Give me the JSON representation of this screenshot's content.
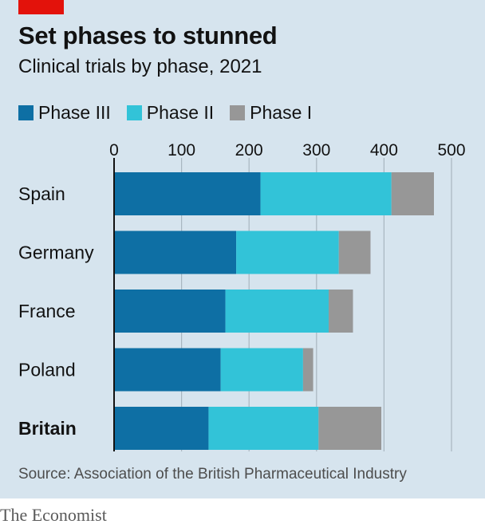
{
  "title": "Set phases to stunned",
  "subtitle": "Clinical trials by phase, 2021",
  "source": "Source: Association of the British Pharmaceutical Industry",
  "brand": "The Economist",
  "colors": {
    "phase3": "#0e6fa4",
    "phase2": "#32c3d8",
    "phase1": "#979797",
    "grid": "#a9b6c0",
    "axis": "#121212"
  },
  "chart_data": {
    "type": "bar",
    "orientation": "horizontal",
    "stacked": true,
    "categories": [
      "Spain",
      "Germany",
      "France",
      "Poland",
      "Britain"
    ],
    "highlight": "Britain",
    "series": [
      {
        "name": "Phase III",
        "values": [
          217,
          181,
          165,
          158,
          140
        ]
      },
      {
        "name": "Phase II",
        "values": [
          194,
          152,
          153,
          122,
          163
        ]
      },
      {
        "name": "Phase I",
        "values": [
          63,
          47,
          36,
          15,
          93
        ]
      }
    ],
    "xlim": [
      0,
      500
    ],
    "xticks": [
      0,
      100,
      200,
      300,
      400,
      500
    ],
    "grid": true,
    "legend": "top-left"
  }
}
